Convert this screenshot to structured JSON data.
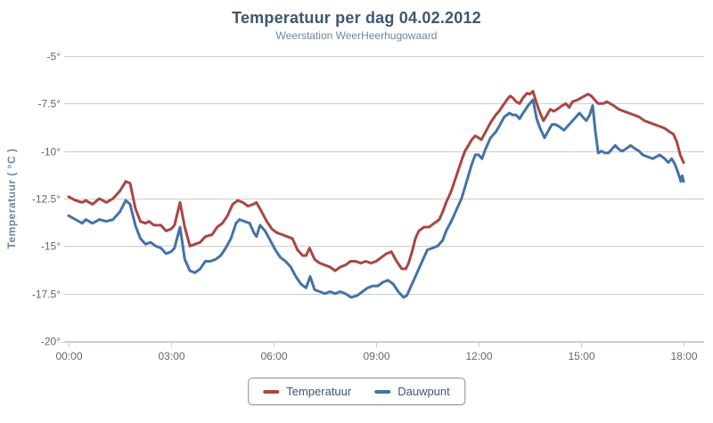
{
  "chart_data": {
    "type": "line",
    "title": "Temperatuur per dag 04.02.2012",
    "subtitle": "Weerstation WeerHeerhugowaard",
    "ylabel": "Temperatuur ( °C )",
    "xlabel": "",
    "ylim": [
      -20,
      -5
    ],
    "xlim_hours": [
      0,
      18
    ],
    "grid": "horizontal-only",
    "legend_position": "bottom-center",
    "axis_label_color": "#666666",
    "gridline_color": "#CCCCCC",
    "axis_line_color": "#C0D0E0",
    "yticks": [
      {
        "value": -5,
        "label": "-5°"
      },
      {
        "value": -7.5,
        "label": "-7.5°"
      },
      {
        "value": -10,
        "label": "-10°"
      },
      {
        "value": -12.5,
        "label": "-12.5°"
      },
      {
        "value": -15,
        "label": "-15°"
      },
      {
        "value": -17.5,
        "label": "-17.5°"
      },
      {
        "value": -20,
        "label": "-20°"
      }
    ],
    "xticks": [
      {
        "hour": 0,
        "label": "00:00"
      },
      {
        "hour": 3,
        "label": "03:00"
      },
      {
        "hour": 6,
        "label": "06:00"
      },
      {
        "hour": 9,
        "label": "09:00"
      },
      {
        "hour": 12,
        "label": "12:00"
      },
      {
        "hour": 15,
        "label": "15:00"
      },
      {
        "hour": 18,
        "label": "18:00"
      }
    ],
    "series": [
      {
        "name": "Temperatuur",
        "color": "#AA4643",
        "points": [
          [
            0,
            -12.4
          ],
          [
            0.2,
            -12.6
          ],
          [
            0.4,
            -12.7
          ],
          [
            0.5,
            -12.6
          ],
          [
            0.7,
            -12.8
          ],
          [
            0.9,
            -12.5
          ],
          [
            1.1,
            -12.7
          ],
          [
            1.3,
            -12.5
          ],
          [
            1.5,
            -12.1
          ],
          [
            1.67,
            -11.6
          ],
          [
            1.8,
            -11.7
          ],
          [
            1.95,
            -13.0
          ],
          [
            2.1,
            -13.7
          ],
          [
            2.25,
            -13.8
          ],
          [
            2.35,
            -13.7
          ],
          [
            2.5,
            -13.9
          ],
          [
            2.7,
            -13.9
          ],
          [
            2.85,
            -14.2
          ],
          [
            3.0,
            -14.1
          ],
          [
            3.1,
            -13.9
          ],
          [
            3.26,
            -12.7
          ],
          [
            3.4,
            -14.0
          ],
          [
            3.55,
            -15.0
          ],
          [
            3.7,
            -14.9
          ],
          [
            3.85,
            -14.8
          ],
          [
            4.0,
            -14.5
          ],
          [
            4.2,
            -14.4
          ],
          [
            4.35,
            -14.0
          ],
          [
            4.5,
            -13.8
          ],
          [
            4.65,
            -13.4
          ],
          [
            4.8,
            -12.8
          ],
          [
            4.95,
            -12.6
          ],
          [
            5.1,
            -12.7
          ],
          [
            5.25,
            -12.9
          ],
          [
            5.4,
            -12.8
          ],
          [
            5.5,
            -12.7
          ],
          [
            5.65,
            -13.2
          ],
          [
            5.8,
            -13.7
          ],
          [
            5.95,
            -14.1
          ],
          [
            6.1,
            -14.3
          ],
          [
            6.25,
            -14.4
          ],
          [
            6.4,
            -14.5
          ],
          [
            6.55,
            -14.6
          ],
          [
            6.7,
            -15.2
          ],
          [
            6.85,
            -15.5
          ],
          [
            6.95,
            -15.5
          ],
          [
            7.05,
            -15.1
          ],
          [
            7.2,
            -15.7
          ],
          [
            7.35,
            -15.9
          ],
          [
            7.5,
            -16.0
          ],
          [
            7.65,
            -16.1
          ],
          [
            7.8,
            -16.3
          ],
          [
            7.95,
            -16.1
          ],
          [
            8.1,
            -16.0
          ],
          [
            8.25,
            -15.8
          ],
          [
            8.4,
            -15.8
          ],
          [
            8.55,
            -15.9
          ],
          [
            8.7,
            -15.8
          ],
          [
            8.85,
            -15.9
          ],
          [
            9.0,
            -15.8
          ],
          [
            9.15,
            -15.6
          ],
          [
            9.3,
            -15.4
          ],
          [
            9.45,
            -15.3
          ],
          [
            9.6,
            -15.8
          ],
          [
            9.75,
            -16.2
          ],
          [
            9.87,
            -16.2
          ],
          [
            9.95,
            -15.9
          ],
          [
            10.05,
            -15.3
          ],
          [
            10.15,
            -14.6
          ],
          [
            10.25,
            -14.2
          ],
          [
            10.4,
            -14.0
          ],
          [
            10.55,
            -14.0
          ],
          [
            10.7,
            -13.8
          ],
          [
            10.85,
            -13.6
          ],
          [
            10.95,
            -13.2
          ],
          [
            11.05,
            -12.7
          ],
          [
            11.2,
            -12.1
          ],
          [
            11.35,
            -11.3
          ],
          [
            11.5,
            -10.5
          ],
          [
            11.6,
            -10.0
          ],
          [
            11.7,
            -9.7
          ],
          [
            11.8,
            -9.4
          ],
          [
            11.9,
            -9.2
          ],
          [
            12.0,
            -9.3
          ],
          [
            12.08,
            -9.4
          ],
          [
            12.2,
            -9.0
          ],
          [
            12.35,
            -8.5
          ],
          [
            12.5,
            -8.1
          ],
          [
            12.6,
            -7.9
          ],
          [
            12.75,
            -7.5
          ],
          [
            12.87,
            -7.2
          ],
          [
            12.93,
            -7.1
          ],
          [
            13.0,
            -7.2
          ],
          [
            13.1,
            -7.4
          ],
          [
            13.2,
            -7.5
          ],
          [
            13.3,
            -7.2
          ],
          [
            13.42,
            -6.95
          ],
          [
            13.5,
            -7.0
          ],
          [
            13.59,
            -6.85
          ],
          [
            13.7,
            -7.5
          ],
          [
            13.8,
            -8.0
          ],
          [
            13.9,
            -8.4
          ],
          [
            14.0,
            -8.1
          ],
          [
            14.1,
            -7.8
          ],
          [
            14.2,
            -7.9
          ],
          [
            14.3,
            -7.8
          ],
          [
            14.45,
            -7.6
          ],
          [
            14.55,
            -7.5
          ],
          [
            14.65,
            -7.7
          ],
          [
            14.75,
            -7.4
          ],
          [
            14.9,
            -7.3
          ],
          [
            15.0,
            -7.2
          ],
          [
            15.1,
            -7.1
          ],
          [
            15.2,
            -7.0
          ],
          [
            15.3,
            -7.1
          ],
          [
            15.4,
            -7.3
          ],
          [
            15.5,
            -7.5
          ],
          [
            15.65,
            -7.5
          ],
          [
            15.75,
            -7.4
          ],
          [
            15.85,
            -7.5
          ],
          [
            15.95,
            -7.6
          ],
          [
            16.1,
            -7.8
          ],
          [
            16.25,
            -7.9
          ],
          [
            16.4,
            -8.0
          ],
          [
            16.55,
            -8.1
          ],
          [
            16.7,
            -8.2
          ],
          [
            16.85,
            -8.4
          ],
          [
            17.0,
            -8.5
          ],
          [
            17.15,
            -8.6
          ],
          [
            17.3,
            -8.7
          ],
          [
            17.45,
            -8.8
          ],
          [
            17.6,
            -9.0
          ],
          [
            17.7,
            -9.1
          ],
          [
            17.8,
            -9.5
          ],
          [
            17.9,
            -10.2
          ],
          [
            18.0,
            -10.6
          ]
        ]
      },
      {
        "name": "Dauwpunt",
        "color": "#4572A7",
        "points": [
          [
            0,
            -13.4
          ],
          [
            0.2,
            -13.6
          ],
          [
            0.4,
            -13.8
          ],
          [
            0.5,
            -13.6
          ],
          [
            0.7,
            -13.8
          ],
          [
            0.9,
            -13.6
          ],
          [
            1.1,
            -13.7
          ],
          [
            1.3,
            -13.6
          ],
          [
            1.5,
            -13.2
          ],
          [
            1.67,
            -12.6
          ],
          [
            1.8,
            -12.8
          ],
          [
            1.95,
            -13.9
          ],
          [
            2.1,
            -14.6
          ],
          [
            2.25,
            -14.9
          ],
          [
            2.4,
            -14.8
          ],
          [
            2.55,
            -15.0
          ],
          [
            2.7,
            -15.1
          ],
          [
            2.85,
            -15.4
          ],
          [
            3.0,
            -15.3
          ],
          [
            3.1,
            -15.1
          ],
          [
            3.26,
            -14.0
          ],
          [
            3.4,
            -15.7
          ],
          [
            3.55,
            -16.3
          ],
          [
            3.7,
            -16.4
          ],
          [
            3.85,
            -16.2
          ],
          [
            4.0,
            -15.8
          ],
          [
            4.15,
            -15.8
          ],
          [
            4.3,
            -15.7
          ],
          [
            4.45,
            -15.5
          ],
          [
            4.6,
            -15.1
          ],
          [
            4.75,
            -14.6
          ],
          [
            4.9,
            -13.8
          ],
          [
            5.0,
            -13.6
          ],
          [
            5.15,
            -13.7
          ],
          [
            5.3,
            -13.8
          ],
          [
            5.42,
            -14.3
          ],
          [
            5.5,
            -14.5
          ],
          [
            5.6,
            -13.9
          ],
          [
            5.75,
            -14.2
          ],
          [
            5.9,
            -14.7
          ],
          [
            6.05,
            -15.2
          ],
          [
            6.2,
            -15.6
          ],
          [
            6.35,
            -15.8
          ],
          [
            6.5,
            -16.1
          ],
          [
            6.65,
            -16.6
          ],
          [
            6.8,
            -17.0
          ],
          [
            6.95,
            -17.2
          ],
          [
            7.07,
            -16.6
          ],
          [
            7.2,
            -17.3
          ],
          [
            7.35,
            -17.4
          ],
          [
            7.5,
            -17.5
          ],
          [
            7.65,
            -17.4
          ],
          [
            7.8,
            -17.5
          ],
          [
            7.95,
            -17.4
          ],
          [
            8.1,
            -17.5
          ],
          [
            8.27,
            -17.7
          ],
          [
            8.45,
            -17.6
          ],
          [
            8.6,
            -17.4
          ],
          [
            8.75,
            -17.2
          ],
          [
            8.9,
            -17.1
          ],
          [
            9.05,
            -17.1
          ],
          [
            9.2,
            -16.9
          ],
          [
            9.35,
            -16.8
          ],
          [
            9.5,
            -17.0
          ],
          [
            9.65,
            -17.4
          ],
          [
            9.8,
            -17.7
          ],
          [
            9.9,
            -17.6
          ],
          [
            10.0,
            -17.2
          ],
          [
            10.1,
            -16.8
          ],
          [
            10.2,
            -16.4
          ],
          [
            10.35,
            -15.8
          ],
          [
            10.5,
            -15.2
          ],
          [
            10.65,
            -15.1
          ],
          [
            10.8,
            -15.0
          ],
          [
            10.95,
            -14.7
          ],
          [
            11.05,
            -14.2
          ],
          [
            11.2,
            -13.7
          ],
          [
            11.35,
            -13.1
          ],
          [
            11.5,
            -12.5
          ],
          [
            11.65,
            -11.6
          ],
          [
            11.8,
            -10.7
          ],
          [
            11.9,
            -10.2
          ],
          [
            12.0,
            -10.2
          ],
          [
            12.1,
            -10.4
          ],
          [
            12.2,
            -9.9
          ],
          [
            12.35,
            -9.3
          ],
          [
            12.5,
            -9.0
          ],
          [
            12.6,
            -8.7
          ],
          [
            12.75,
            -8.2
          ],
          [
            12.9,
            -8.0
          ],
          [
            13.0,
            -8.1
          ],
          [
            13.1,
            -8.1
          ],
          [
            13.2,
            -8.3
          ],
          [
            13.3,
            -8.0
          ],
          [
            13.45,
            -7.6
          ],
          [
            13.59,
            -7.3
          ],
          [
            13.7,
            -8.3
          ],
          [
            13.8,
            -8.8
          ],
          [
            13.93,
            -9.3
          ],
          [
            14.05,
            -8.9
          ],
          [
            14.15,
            -8.6
          ],
          [
            14.25,
            -8.6
          ],
          [
            14.35,
            -8.7
          ],
          [
            14.5,
            -8.9
          ],
          [
            14.6,
            -8.7
          ],
          [
            14.7,
            -8.5
          ],
          [
            14.85,
            -8.2
          ],
          [
            14.95,
            -8.0
          ],
          [
            15.05,
            -8.2
          ],
          [
            15.15,
            -8.4
          ],
          [
            15.25,
            -8.1
          ],
          [
            15.34,
            -7.6
          ],
          [
            15.42,
            -9.0
          ],
          [
            15.5,
            -10.1
          ],
          [
            15.6,
            -10.0
          ],
          [
            15.7,
            -10.1
          ],
          [
            15.8,
            -10.1
          ],
          [
            15.9,
            -9.9
          ],
          [
            16.0,
            -9.7
          ],
          [
            16.1,
            -9.9
          ],
          [
            16.2,
            -10.0
          ],
          [
            16.3,
            -9.9
          ],
          [
            16.45,
            -9.7
          ],
          [
            16.6,
            -9.9
          ],
          [
            16.7,
            -10.0
          ],
          [
            16.8,
            -10.2
          ],
          [
            16.95,
            -10.3
          ],
          [
            17.1,
            -10.4
          ],
          [
            17.2,
            -10.3
          ],
          [
            17.3,
            -10.2
          ],
          [
            17.45,
            -10.4
          ],
          [
            17.55,
            -10.6
          ],
          [
            17.65,
            -10.4
          ],
          [
            17.75,
            -10.7
          ],
          [
            17.85,
            -11.2
          ],
          [
            17.92,
            -11.6
          ],
          [
            17.96,
            -11.3
          ],
          [
            18.0,
            -11.6
          ]
        ]
      }
    ]
  },
  "legend": {
    "items": [
      {
        "label": "Temperatuur",
        "color": "#AA4643"
      },
      {
        "label": "Dauwpunt",
        "color": "#4572A7"
      }
    ]
  }
}
